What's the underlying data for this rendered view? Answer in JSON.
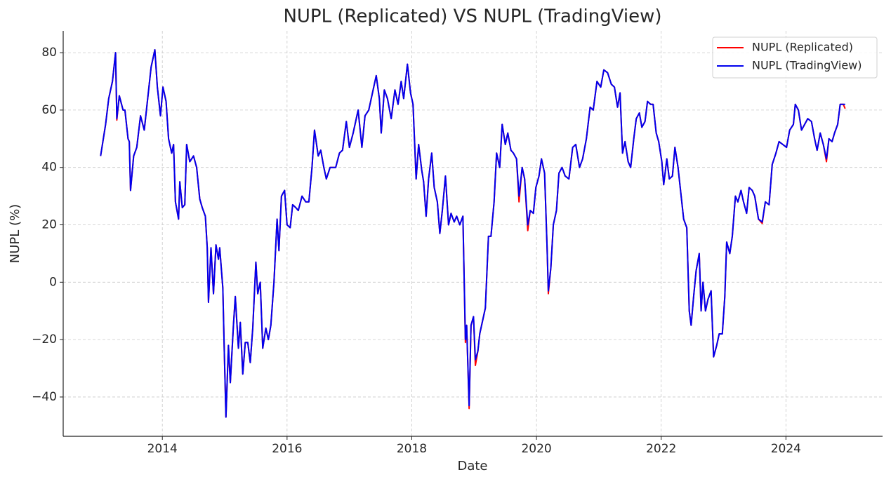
{
  "chart_data": {
    "type": "line",
    "title": "NUPL (Replicated) VS NUPL (TradingView)",
    "x_label": "Date",
    "y_label": "NUPL (%)",
    "xlim": [
      2012.41,
      2025.55
    ],
    "ylim": [
      -53.7,
      87.6
    ],
    "xticks": [
      2014,
      2016,
      2018,
      2020,
      2022,
      2024
    ],
    "yticks": [
      {
        "value": -40,
        "label": "−40"
      },
      {
        "value": -20,
        "label": "−20"
      },
      0,
      20,
      40,
      60,
      80
    ],
    "grid": true,
    "legend": "upper right",
    "x": [
      2013.01,
      2013.09,
      2013.14,
      2013.2,
      2013.25,
      2013.27,
      2013.31,
      2013.37,
      2013.4,
      2013.45,
      2013.47,
      2013.49,
      2013.54,
      2013.59,
      2013.65,
      2013.71,
      2013.76,
      2013.82,
      2013.88,
      2013.92,
      2013.97,
      2014.01,
      2014.06,
      2014.1,
      2014.15,
      2014.18,
      2014.21,
      2014.26,
      2014.28,
      2014.32,
      2014.36,
      2014.39,
      2014.44,
      2014.5,
      2014.55,
      2014.6,
      2014.64,
      2014.69,
      2014.72,
      2014.74,
      2014.78,
      2014.82,
      2014.86,
      2014.9,
      2014.92,
      2014.97,
      2014.99,
      2015.02,
      2015.06,
      2015.09,
      2015.14,
      2015.17,
      2015.22,
      2015.25,
      2015.29,
      2015.33,
      2015.37,
      2015.41,
      2015.45,
      2015.5,
      2015.53,
      2015.57,
      2015.61,
      2015.66,
      2015.7,
      2015.74,
      2015.79,
      2015.84,
      2015.87,
      2015.91,
      2015.96,
      2016.0,
      2016.05,
      2016.09,
      2016.14,
      2016.18,
      2016.24,
      2016.3,
      2016.35,
      2016.4,
      2016.44,
      2016.5,
      2016.54,
      2016.59,
      2016.63,
      2016.69,
      2016.78,
      2016.84,
      2016.89,
      2016.95,
      2017.0,
      2017.06,
      2017.14,
      2017.2,
      2017.25,
      2017.31,
      2017.37,
      2017.43,
      2017.48,
      2017.51,
      2017.56,
      2017.61,
      2017.67,
      2017.73,
      2017.78,
      2017.83,
      2017.87,
      2017.93,
      2017.98,
      2018.02,
      2018.07,
      2018.11,
      2018.16,
      2018.19,
      2018.23,
      2018.27,
      2018.32,
      2018.36,
      2018.41,
      2018.45,
      2018.49,
      2018.54,
      2018.59,
      2018.63,
      2018.68,
      2018.72,
      2018.77,
      2018.82,
      2018.86,
      2018.88,
      2018.92,
      2018.95,
      2018.99,
      2019.02,
      2019.06,
      2019.09,
      2019.14,
      2019.18,
      2019.23,
      2019.27,
      2019.32,
      2019.36,
      2019.41,
      2019.45,
      2019.5,
      2019.54,
      2019.59,
      2019.63,
      2019.68,
      2019.72,
      2019.77,
      2019.81,
      2019.86,
      2019.9,
      2019.95,
      2019.99,
      2020.04,
      2020.08,
      2020.13,
      2020.17,
      2020.19,
      2020.23,
      2020.27,
      2020.32,
      2020.36,
      2020.41,
      2020.46,
      2020.52,
      2020.58,
      2020.63,
      2020.69,
      2020.74,
      2020.8,
      2020.86,
      2020.91,
      2020.97,
      2021.03,
      2021.08,
      2021.14,
      2021.2,
      2021.25,
      2021.3,
      2021.34,
      2021.38,
      2021.42,
      2021.47,
      2021.51,
      2021.56,
      2021.6,
      2021.65,
      2021.69,
      2021.74,
      2021.78,
      2021.83,
      2021.87,
      2021.92,
      2021.96,
      2022.01,
      2022.04,
      2022.09,
      2022.13,
      2022.18,
      2022.22,
      2022.27,
      2022.31,
      2022.36,
      2022.41,
      2022.45,
      2022.48,
      2022.52,
      2022.56,
      2022.61,
      2022.64,
      2022.67,
      2022.71,
      2022.75,
      2022.8,
      2022.84,
      2022.89,
      2022.93,
      2022.98,
      2023.02,
      2023.05,
      2023.1,
      2023.14,
      2023.19,
      2023.23,
      2023.28,
      2023.32,
      2023.37,
      2023.41,
      2023.46,
      2023.5,
      2023.56,
      2023.62,
      2023.67,
      2023.73,
      2023.78,
      2023.84,
      2023.89,
      2023.95,
      2024.01,
      2024.06,
      2024.12,
      2024.15,
      2024.2,
      2024.25,
      2024.3,
      2024.35,
      2024.41,
      2024.46,
      2024.5,
      2024.55,
      2024.6,
      2024.65,
      2024.69,
      2024.74,
      2024.78,
      2024.83,
      2024.87,
      2024.92,
      2024.95
    ],
    "series": [
      {
        "name": "NUPL (Replicated)",
        "color": "#ff0000",
        "values": [
          44,
          55,
          64,
          70,
          80,
          56.5,
          65,
          60,
          60,
          50,
          49,
          32,
          44,
          47,
          58,
          53,
          63,
          75,
          81,
          68,
          58,
          68,
          63,
          50,
          45,
          48,
          28,
          22,
          35,
          26,
          27,
          48,
          42,
          44,
          40,
          29,
          26,
          23,
          12,
          -7,
          12,
          -4,
          13,
          8,
          12,
          -2,
          -21,
          -47,
          -22,
          -35,
          -15,
          -5,
          -23,
          -14,
          -32,
          -21,
          -21,
          -28,
          -16,
          7,
          -4,
          0,
          -23,
          -16,
          -20,
          -15,
          0,
          22,
          11,
          30,
          32,
          20,
          19,
          27,
          26,
          25,
          30,
          28,
          28,
          40,
          53,
          44,
          46,
          40,
          36,
          40,
          40,
          45,
          46,
          56,
          47,
          52,
          60,
          47,
          58,
          60,
          66,
          72,
          64,
          52,
          67,
          64,
          57,
          67,
          62,
          70,
          64,
          76,
          66,
          62,
          36,
          48,
          39,
          35,
          23,
          36,
          45,
          33,
          28,
          17,
          25,
          37,
          20,
          24,
          21,
          23,
          20,
          23,
          -21,
          -15,
          -44,
          -15,
          -12,
          -29,
          -24,
          -18,
          -13,
          -9,
          16,
          16,
          28,
          45,
          40,
          55,
          48,
          52,
          46,
          45,
          43,
          28,
          40,
          36,
          18,
          25,
          24,
          33,
          37,
          43,
          38,
          12,
          -4,
          5,
          20,
          25,
          38,
          40,
          37,
          36,
          47,
          48,
          40,
          43,
          50,
          61,
          60,
          70,
          68,
          74,
          73,
          69,
          68,
          61,
          66,
          45,
          49,
          42,
          40,
          50,
          57,
          59,
          54,
          56,
          63,
          62,
          62,
          52,
          49,
          42,
          34,
          43,
          36,
          37,
          47,
          40,
          32,
          22,
          19,
          -10,
          -15,
          -5,
          4,
          10,
          -10,
          0,
          -10,
          -6,
          -3,
          -26,
          -22,
          -18,
          -18,
          -5,
          14,
          10,
          16,
          30,
          28,
          32,
          28,
          24,
          33,
          32,
          30,
          22,
          20.5,
          28,
          27,
          41,
          45,
          49,
          48,
          47,
          53,
          55,
          62,
          60,
          53,
          55,
          57,
          56,
          50,
          46,
          52,
          48,
          42,
          50,
          49,
          52,
          55,
          62,
          62,
          60.5
        ]
      },
      {
        "name": "NUPL (TradingView)",
        "color": "#0000ee",
        "values": [
          44,
          55,
          64,
          70,
          80,
          57,
          65,
          60,
          60,
          50,
          49,
          32,
          44,
          47,
          58,
          53,
          63,
          75,
          81,
          68,
          58,
          68,
          63,
          50,
          45,
          48,
          28,
          22,
          35,
          26,
          27,
          48,
          42,
          44,
          40,
          29,
          26,
          23,
          12,
          -7,
          12,
          -4,
          13,
          8,
          12,
          -2,
          -21,
          -47,
          -22,
          -35,
          -15,
          -5,
          -23,
          -14,
          -32,
          -21,
          -21,
          -28,
          -16,
          7,
          -4,
          0,
          -23,
          -16,
          -20,
          -15,
          0,
          22,
          11,
          30,
          32,
          20,
          19,
          27,
          26,
          25,
          30,
          28,
          28,
          40,
          53,
          44,
          46,
          40,
          36,
          40,
          40,
          45,
          46,
          56,
          47,
          52,
          60,
          47,
          58,
          60,
          66,
          72,
          64,
          52,
          67,
          64,
          57,
          67,
          62,
          70,
          64,
          76,
          66,
          62,
          36,
          48,
          39,
          35,
          23,
          36,
          45,
          33,
          28,
          17,
          25,
          37,
          20,
          24,
          21,
          23,
          20,
          23,
          -20,
          -15,
          -43,
          -15,
          -12,
          -27,
          -24,
          -18,
          -13,
          -9,
          16,
          16,
          28,
          45,
          40,
          55,
          48,
          52,
          46,
          45,
          43,
          30,
          40,
          36,
          20,
          25,
          24,
          33,
          37,
          43,
          38,
          12,
          -3,
          5,
          20,
          25,
          38,
          40,
          37,
          36,
          47,
          48,
          40,
          43,
          50,
          61,
          60,
          70,
          68,
          74,
          73,
          69,
          68,
          61,
          66,
          45,
          49,
          42,
          40,
          50,
          57,
          59,
          54,
          56,
          63,
          62,
          62,
          52,
          49,
          42,
          34,
          43,
          36,
          37,
          47,
          40,
          32,
          22,
          19,
          -10,
          -15,
          -5,
          4,
          10,
          -10,
          0,
          -10,
          -6,
          -3,
          -26,
          -22,
          -18,
          -18,
          -5,
          14,
          10,
          16,
          30,
          28,
          32,
          28,
          24,
          33,
          32,
          30,
          22,
          21,
          28,
          27,
          41,
          45,
          49,
          48,
          47,
          53,
          55,
          62,
          60,
          53,
          55,
          57,
          56,
          50,
          46,
          52,
          48,
          43,
          50,
          49,
          52,
          55,
          62,
          62,
          62
        ]
      }
    ]
  }
}
